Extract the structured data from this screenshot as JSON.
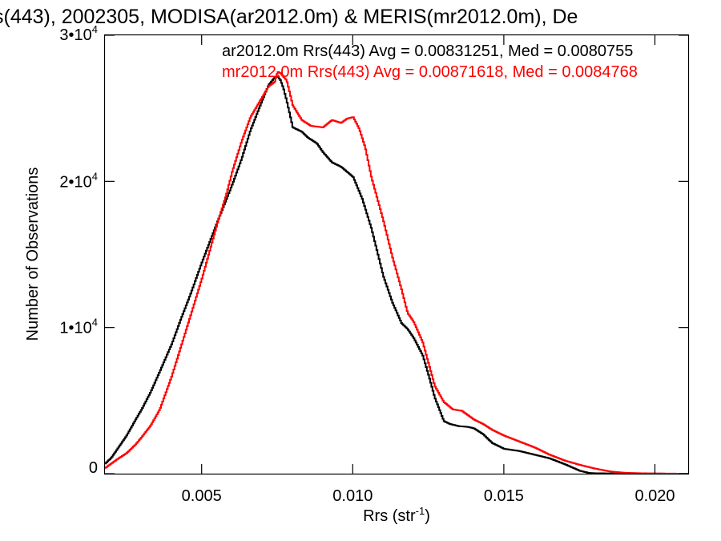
{
  "chart_data": {
    "type": "line",
    "title": "s(443), 2002305, MODISA(ar2012.0m) & MERIS(mr2012.0m), De",
    "xlabel": "Rrs (str",
    "xlabel_sup": "-1",
    "xlabel_close": ")",
    "ylabel": "Number of Observations",
    "xlim": [
      0.0018,
      0.0211
    ],
    "ylim": [
      0,
      30000
    ],
    "xticks": [
      {
        "value": 0.005,
        "label": "0.005"
      },
      {
        "value": 0.01,
        "label": "0.010"
      },
      {
        "value": 0.015,
        "label": "0.015"
      },
      {
        "value": 0.02,
        "label": "0.020"
      }
    ],
    "yticks": [
      {
        "value": 0,
        "label": "0",
        "sup": ""
      },
      {
        "value": 10000,
        "label": "1•10",
        "sup": "4"
      },
      {
        "value": 20000,
        "label": "2•10",
        "sup": "4"
      },
      {
        "value": 30000,
        "label": "3•10",
        "sup": "4"
      }
    ],
    "series": [
      {
        "label": "ar2012.0m Rrs(443) Avg = 0.00831251, Med = 0.0080755",
        "color": "#000000",
        "x": [
          0.0018,
          0.002,
          0.0022,
          0.0025,
          0.0028,
          0.003,
          0.0033,
          0.0036,
          0.004,
          0.0043,
          0.0046,
          0.005,
          0.0055,
          0.006,
          0.0063,
          0.0066,
          0.007,
          0.0072,
          0.0074,
          0.0075,
          0.0076,
          0.0077,
          0.0078,
          0.008,
          0.0083,
          0.0085,
          0.0088,
          0.009,
          0.0093,
          0.0096,
          0.01,
          0.0103,
          0.0106,
          0.011,
          0.0113,
          0.0116,
          0.0118,
          0.012,
          0.0123,
          0.0125,
          0.0127,
          0.013,
          0.0132,
          0.0135,
          0.0138,
          0.014,
          0.0143,
          0.0146,
          0.015,
          0.0155,
          0.016,
          0.0165,
          0.017,
          0.0175,
          0.0178,
          0.018,
          0.0185,
          0.019,
          0.02,
          0.0211
        ],
        "values": [
          700,
          1100,
          1700,
          2600,
          3700,
          4400,
          5600,
          7000,
          8900,
          10600,
          12200,
          14500,
          17200,
          19800,
          21500,
          23500,
          25600,
          26600,
          27100,
          27200,
          26900,
          26300,
          25500,
          23700,
          23400,
          23000,
          22600,
          22000,
          21300,
          21000,
          20300,
          18800,
          16800,
          13500,
          11700,
          10300,
          9900,
          9300,
          8100,
          6700,
          5200,
          3600,
          3400,
          3250,
          3200,
          3100,
          2700,
          2100,
          1700,
          1550,
          1300,
          1050,
          650,
          200,
          50,
          30,
          20,
          10,
          5,
          0
        ]
      },
      {
        "label": "mr2012.0m Rrs(443) Avg = 0.00871618, Med = 0.0084768",
        "color": "#ff0000",
        "x": [
          0.0018,
          0.002,
          0.0022,
          0.0025,
          0.0028,
          0.003,
          0.0033,
          0.0036,
          0.004,
          0.0043,
          0.0046,
          0.005,
          0.0055,
          0.0058,
          0.006,
          0.0063,
          0.0066,
          0.007,
          0.0072,
          0.0074,
          0.0075,
          0.0076,
          0.0078,
          0.008,
          0.0083,
          0.0086,
          0.009,
          0.0093,
          0.0096,
          0.0098,
          0.01,
          0.0102,
          0.0104,
          0.0106,
          0.011,
          0.0113,
          0.0116,
          0.0118,
          0.012,
          0.0123,
          0.0125,
          0.0127,
          0.013,
          0.0133,
          0.0136,
          0.014,
          0.0143,
          0.0146,
          0.015,
          0.0155,
          0.016,
          0.0165,
          0.017,
          0.0175,
          0.018,
          0.0185,
          0.019,
          0.0195,
          0.02,
          0.0205,
          0.0211
        ],
        "values": [
          400,
          700,
          1000,
          1400,
          2000,
          2500,
          3300,
          4400,
          6700,
          8700,
          10700,
          13400,
          17100,
          19100,
          20700,
          22700,
          24400,
          25800,
          26500,
          26800,
          27500,
          27400,
          26900,
          25200,
          24200,
          23800,
          23700,
          24200,
          24000,
          24300,
          24400,
          23600,
          22300,
          20300,
          17300,
          14800,
          12600,
          11000,
          10400,
          9000,
          7500,
          6000,
          4900,
          4400,
          4300,
          3700,
          3400,
          3000,
          2600,
          2200,
          1800,
          1300,
          900,
          600,
          350,
          150,
          60,
          30,
          15,
          5,
          0
        ]
      }
    ]
  }
}
